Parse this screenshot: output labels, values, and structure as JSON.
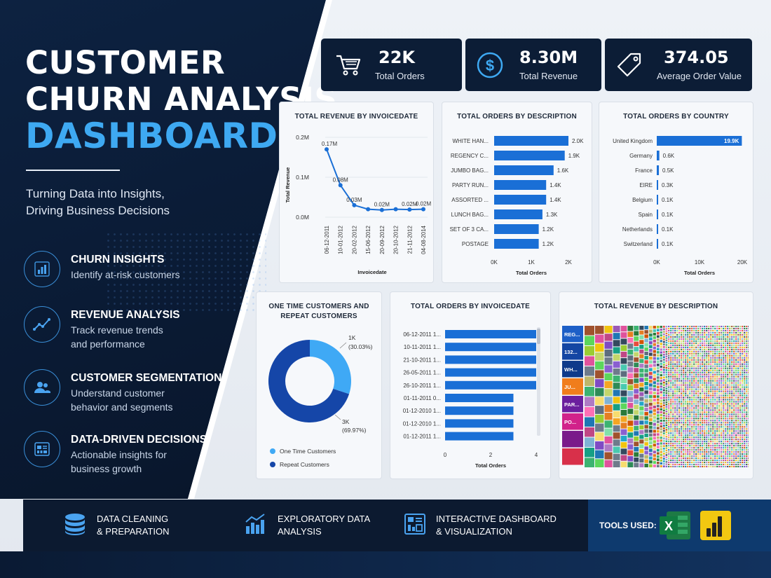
{
  "hero": {
    "title_line1": "CUSTOMER",
    "title_line2": "CHURN ANALYSIS",
    "title_line3": "DASHBOARD",
    "subtitle_line1": "Turning Data into Insights,",
    "subtitle_line2": "Driving Business Decisions"
  },
  "features": [
    {
      "title": "CHURN INSIGHTS",
      "desc": "Identify at-risk customers",
      "icon": "bar-chart-icon"
    },
    {
      "title": "REVENUE ANALYSIS",
      "desc": "Track revenue trends and performance",
      "icon": "trend-line-icon"
    },
    {
      "title": "CUSTOMER SEGMENTATION",
      "desc": "Understand customer behavior and segments",
      "icon": "users-icon"
    },
    {
      "title": "DATA-DRIVEN DECISIONS",
      "desc": "Actionable insights for business growth",
      "icon": "dashboard-icon"
    }
  ],
  "kpis": [
    {
      "value": "22K",
      "label": "Total Orders",
      "icon": "cart-icon"
    },
    {
      "value": "8.30M",
      "label": "Total Revenue",
      "icon": "dollar-icon"
    },
    {
      "value": "374.05",
      "label": "Average Order Value",
      "icon": "tag-icon"
    }
  ],
  "charts": {
    "revenue_by_date": {
      "title": "TOTAL REVENUE BY INVOICEDATE",
      "xlabel": "Invoicedate",
      "ylabel": "Total Revenue",
      "yticks": [
        "0.2M",
        "0.1M",
        "0.0M"
      ]
    },
    "orders_by_desc": {
      "title": "TOTAL ORDERS BY DESCRIPTION",
      "xlabel": "Total Orders",
      "xticks": [
        "0K",
        "1K",
        "2K"
      ]
    },
    "orders_by_country": {
      "title": "TOTAL ORDERS BY COUNTRY",
      "xlabel": "Total Orders",
      "xticks": [
        "0K",
        "10K",
        "20K"
      ]
    },
    "customers_pie": {
      "title_line1": "ONE TIME CUSTOMERS AND",
      "title_line2": "REPEAT CUSTOMERS"
    },
    "orders_by_date": {
      "title": "TOTAL ORDERS BY INVOICEDATE",
      "xlabel": "Total Orders",
      "xticks": [
        "0",
        "2",
        "4"
      ]
    },
    "treemap": {
      "title": "TOTAL REVENUE BY DESCRIPTION",
      "labels": [
        "REG...",
        "132...",
        "WH...",
        "JU...",
        "PAR...",
        "PO..."
      ]
    }
  },
  "chart_data": [
    {
      "type": "line",
      "title": "TOTAL REVENUE BY INVOICEDATE",
      "xlabel": "Invoicedate",
      "ylabel": "Total Revenue",
      "x": [
        "06-12-2011",
        "10-01-2012",
        "20-02-2012",
        "15-06-2012",
        "20-09-2012",
        "20-10-2012",
        "21-11-2012",
        "04-08-2014"
      ],
      "values": [
        0.17,
        0.08,
        0.03,
        0.02,
        0.018,
        0.02,
        0.019,
        0.02
      ],
      "data_labels": [
        "0.17M",
        "0.08M",
        "0.03M",
        "",
        "0.02M",
        "",
        "0.02M",
        "0.02M"
      ],
      "ylim": [
        0,
        0.2
      ]
    },
    {
      "type": "bar",
      "title": "TOTAL ORDERS BY DESCRIPTION",
      "xlabel": "Total Orders",
      "categories": [
        "WHITE HAN...",
        "REGENCY C...",
        "JUMBO BAG...",
        "PARTY RUN...",
        "ASSORTED ...",
        "LUNCH BAG...",
        "SET OF 3 CA...",
        "POSTAGE"
      ],
      "values": [
        2.0,
        1.9,
        1.6,
        1.4,
        1.4,
        1.3,
        1.2,
        1.2
      ],
      "data_labels": [
        "2.0K",
        "1.9K",
        "1.6K",
        "1.4K",
        "1.4K",
        "1.3K",
        "1.2K",
        "1.2K"
      ],
      "xlim": [
        0,
        2
      ]
    },
    {
      "type": "bar",
      "title": "TOTAL ORDERS BY COUNTRY",
      "xlabel": "Total Orders",
      "categories": [
        "United Kingdom",
        "Germany",
        "France",
        "EIRE",
        "Belgium",
        "Spain",
        "Netherlands",
        "Switzerland"
      ],
      "values": [
        19.9,
        0.6,
        0.5,
        0.3,
        0.1,
        0.1,
        0.1,
        0.1
      ],
      "data_labels": [
        "19.9K",
        "0.6K",
        "0.5K",
        "0.3K",
        "0.1K",
        "0.1K",
        "0.1K",
        "0.1K"
      ],
      "xlim": [
        0,
        20
      ]
    },
    {
      "type": "pie",
      "title": "ONE TIME CUSTOMERS AND REPEAT CUSTOMERS",
      "categories": [
        "One Time Customers",
        "Repeat Customers"
      ],
      "values": [
        30.03,
        69.97
      ],
      "data_labels": [
        "1K",
        "3K"
      ],
      "pct_labels": [
        "(30.03%)",
        "(69.97%)"
      ],
      "colors": [
        "#3fa9f5",
        "#1546a8"
      ]
    },
    {
      "type": "bar",
      "title": "TOTAL ORDERS BY INVOICEDATE",
      "xlabel": "Total Orders",
      "categories": [
        "06-12-2011 1...",
        "10-11-2011 1...",
        "21-10-2011 1...",
        "26-05-2011 1...",
        "26-10-2011 1...",
        "01-11-2011 0...",
        "01-12-2010 1...",
        "01-12-2010 1...",
        "01-12-2011 1..."
      ],
      "values": [
        4,
        4,
        4,
        4,
        4,
        3,
        3,
        3,
        3
      ],
      "xlim": [
        0,
        4
      ]
    }
  ],
  "footer": {
    "items": [
      {
        "line1": "DATA CLEANING",
        "line2": "& PREPARATION",
        "icon": "database-icon"
      },
      {
        "line1": "EXPLORATORY DATA",
        "line2": "ANALYSIS",
        "icon": "analysis-chart-icon"
      },
      {
        "line1": "INTERACTIVE DASHBOARD",
        "line2": "& VISUALIZATION",
        "icon": "dashboard-layout-icon"
      }
    ],
    "tools_label": "TOOLS USED:",
    "tools": [
      "excel-icon",
      "power-bi-icon"
    ]
  },
  "colors": {
    "bar": "#1a6fd6",
    "navy": "#0c1d36",
    "accent": "#3ea9f2"
  }
}
